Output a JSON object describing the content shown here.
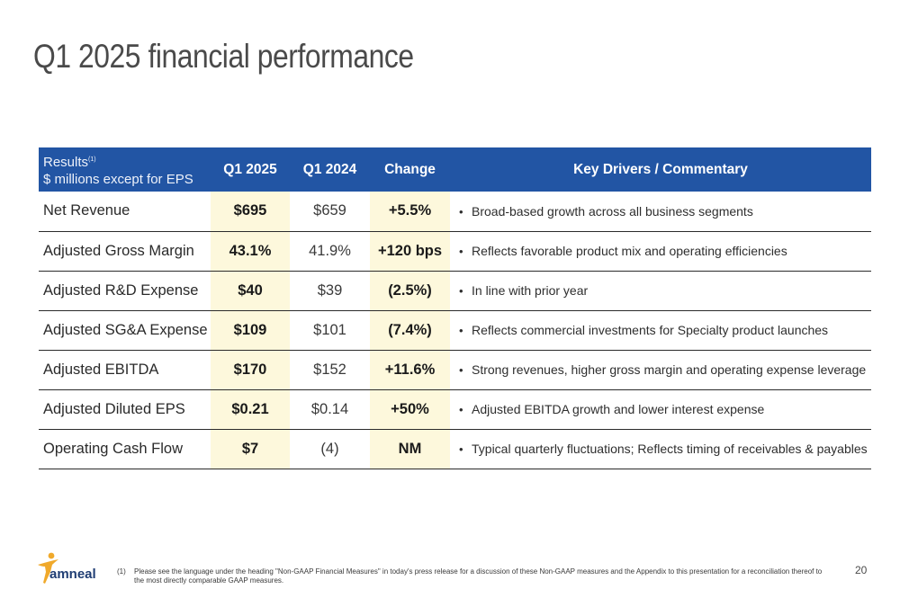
{
  "page": {
    "title": "Q1 2025 financial performance",
    "page_number": "20"
  },
  "table": {
    "header": {
      "first_line": "Results",
      "first_sup": "(1)",
      "second_line": "$ millions except for EPS",
      "q1_2025": "Q1 2025",
      "q1_2024": "Q1 2024",
      "change": "Change",
      "commentary": "Key Drivers / Commentary"
    },
    "rows": [
      {
        "metric": "Net Revenue",
        "q1_2025": "$695",
        "q1_2024": "$659",
        "change": "+5.5%",
        "comment": "Broad-based growth across all business segments"
      },
      {
        "metric": "Adjusted Gross Margin",
        "q1_2025": "43.1%",
        "q1_2024": "41.9%",
        "change": "+120 bps",
        "comment": "Reflects favorable product mix and operating efficiencies"
      },
      {
        "metric": "Adjusted R&D Expense",
        "q1_2025": "$40",
        "q1_2024": "$39",
        "change": "(2.5%)",
        "comment": "In line with prior year"
      },
      {
        "metric": "Adjusted SG&A Expense",
        "q1_2025": "$109",
        "q1_2024": "$101",
        "change": "(7.4%)",
        "comment": "Reflects commercial investments for Specialty product launches"
      },
      {
        "metric": "Adjusted EBITDA",
        "q1_2025": "$170",
        "q1_2024": "$152",
        "change": "+11.6%",
        "comment": "Strong revenues, higher gross margin and operating expense leverage"
      },
      {
        "metric": "Adjusted Diluted EPS",
        "q1_2025": "$0.21",
        "q1_2024": "$0.14",
        "change": "+50%",
        "comment": "Adjusted EBITDA growth and lower interest expense"
      },
      {
        "metric": "Operating Cash Flow",
        "q1_2025": "$7",
        "q1_2024": "(4)",
        "change": "NM",
        "comment": "Typical quarterly fluctuations; Reflects timing of receivables & payables"
      }
    ]
  },
  "footnote": {
    "number": "(1)",
    "text": "Please see the language under the heading \"Non-GAAP Financial Measures\" in today's press release for a discussion of these Non-GAAP measures and the Appendix to this presentation for a reconciliation thereof to the most directly comparable GAAP measures."
  },
  "logo": {
    "wordmark": "amneal",
    "icon": "person-star-icon",
    "colors": {
      "wordmark": "#1f3d73",
      "figure": "#f0a92b"
    }
  },
  "colors": {
    "header_bg": "#2255a4",
    "highlight_bg": "#fdf8dc",
    "title_text": "#4a4a4a"
  }
}
